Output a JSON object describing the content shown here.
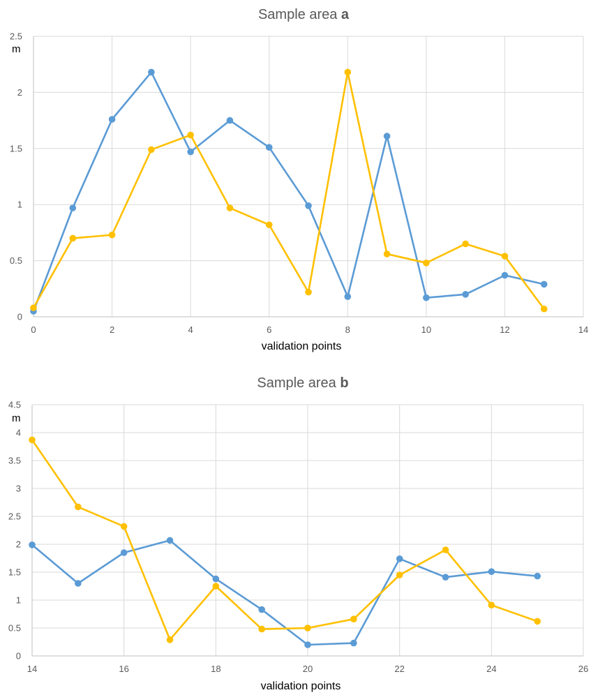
{
  "chart_data": [
    {
      "type": "line",
      "title": "Sample area ",
      "title_bold": "a",
      "xlabel": "validation points",
      "ylabel": "m",
      "xlim": [
        0,
        14
      ],
      "ylim": [
        0,
        2.5
      ],
      "xticks": [
        0,
        2,
        4,
        6,
        8,
        10,
        12,
        14
      ],
      "yticks": [
        0,
        0.5,
        1,
        1.5,
        2,
        2.5
      ],
      "x_tick_labels": [
        "0",
        "2",
        "4",
        "6",
        "8",
        "10",
        "12",
        "14"
      ],
      "y_tick_labels": [
        "0",
        "0.5",
        "1",
        "1.5",
        "2",
        "2.5"
      ],
      "grid": true,
      "x": [
        0,
        1,
        2,
        3,
        4,
        5,
        6,
        7,
        8,
        9,
        10,
        11,
        12,
        13
      ],
      "series": [
        {
          "color": "#5b9bd5",
          "values": [
            0.05,
            0.97,
            1.76,
            2.18,
            1.47,
            1.75,
            1.51,
            0.99,
            0.18,
            1.61,
            0.17,
            0.2,
            0.37,
            0.29
          ]
        },
        {
          "color": "#ffc000",
          "values": [
            0.08,
            0.7,
            0.73,
            1.49,
            1.62,
            0.97,
            0.82,
            0.22,
            2.18,
            0.56,
            0.48,
            0.65,
            0.54,
            0.07
          ]
        }
      ]
    },
    {
      "type": "line",
      "title": "Sample area ",
      "title_bold": "b",
      "xlabel": "validation points",
      "ylabel": "m",
      "xlim": [
        14,
        26
      ],
      "ylim": [
        0,
        4.5
      ],
      "xticks": [
        14,
        16,
        18,
        20,
        22,
        24,
        26
      ],
      "yticks": [
        0,
        0.5,
        1,
        1.5,
        2,
        2.5,
        3,
        3.5,
        4,
        4.5
      ],
      "x_tick_labels": [
        "14",
        "16",
        "18",
        "20",
        "22",
        "24",
        "26"
      ],
      "y_tick_labels": [
        "0",
        "0.5",
        "1",
        "1.5",
        "2",
        "2.5",
        "3",
        "3.5",
        "4",
        "4.5"
      ],
      "grid": true,
      "x": [
        14,
        15,
        16,
        17,
        18,
        19,
        20,
        21,
        22,
        23,
        24,
        25
      ],
      "series": [
        {
          "color": "#5b9bd5",
          "values": [
            1.99,
            1.3,
            1.85,
            2.07,
            1.38,
            0.83,
            0.2,
            0.23,
            1.74,
            1.41,
            1.51,
            1.43
          ]
        },
        {
          "color": "#ffc000",
          "values": [
            3.87,
            2.67,
            2.32,
            0.29,
            1.25,
            0.48,
            0.5,
            0.66,
            1.45,
            1.9,
            0.91,
            0.62
          ]
        }
      ]
    }
  ]
}
